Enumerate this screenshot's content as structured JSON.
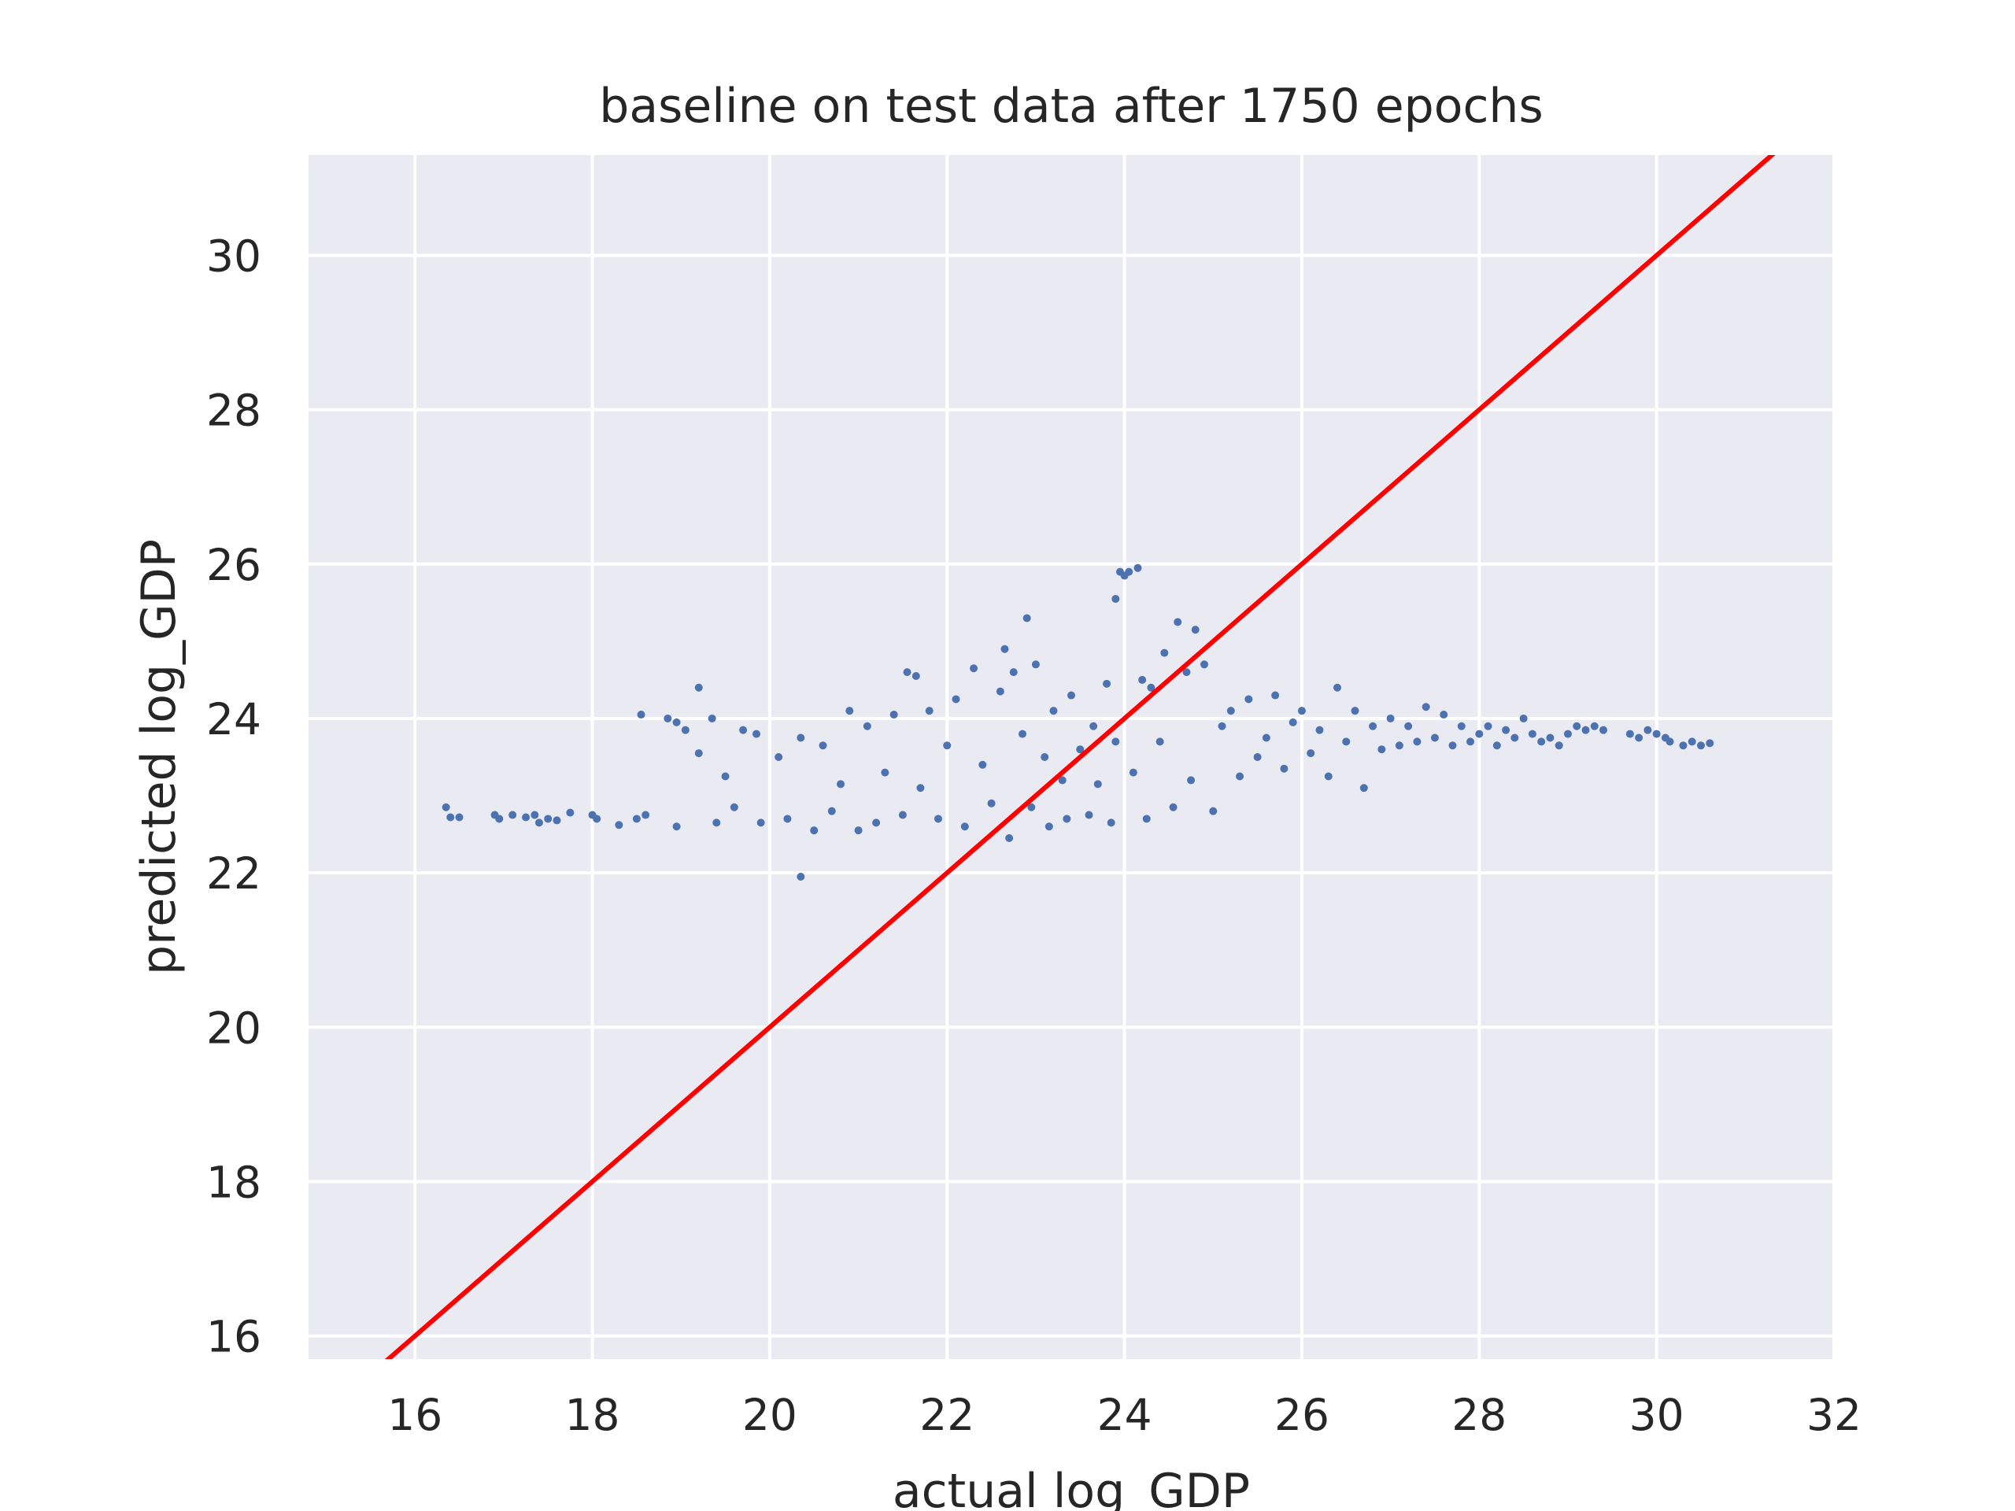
{
  "chart_data": {
    "type": "scatter",
    "title": "baseline on test data after 1750 epochs",
    "xlabel": "actual log_GDP",
    "ylabel": "predicted log_GDP",
    "xlim": [
      14.8,
      32.0
    ],
    "ylim": [
      15.7,
      31.3
    ],
    "xticks": [
      16,
      18,
      20,
      22,
      24,
      26,
      28,
      30,
      32
    ],
    "yticks": [
      16,
      18,
      20,
      22,
      24,
      26,
      28,
      30
    ],
    "xtick_labels": [
      "16",
      "18",
      "20",
      "22",
      "24",
      "26",
      "28",
      "30",
      "32"
    ],
    "ytick_labels": [
      "16",
      "18",
      "20",
      "22",
      "24",
      "26",
      "28",
      "30"
    ],
    "grid": true,
    "background_color": "#eaeaf2",
    "grid_color": "#ffffff",
    "point_color": "#4c72b0",
    "line_color": "#ff0000",
    "reference_line": {
      "description": "y = x",
      "points": [
        [
          15.0,
          15.0
        ],
        [
          32.0,
          32.0
        ]
      ]
    },
    "series": [
      {
        "points": [
          [
            16.35,
            22.85
          ],
          [
            16.4,
            22.72
          ],
          [
            16.5,
            22.72
          ],
          [
            16.9,
            22.75
          ],
          [
            16.95,
            22.7
          ],
          [
            17.1,
            22.75
          ],
          [
            17.25,
            22.72
          ],
          [
            17.35,
            22.75
          ],
          [
            17.4,
            22.65
          ],
          [
            17.5,
            22.7
          ],
          [
            17.6,
            22.68
          ],
          [
            17.75,
            22.78
          ],
          [
            18.0,
            22.75
          ],
          [
            18.05,
            22.7
          ],
          [
            18.3,
            22.62
          ],
          [
            18.5,
            22.7
          ],
          [
            18.6,
            22.75
          ],
          [
            18.55,
            24.05
          ],
          [
            18.85,
            24.0
          ],
          [
            18.95,
            23.95
          ],
          [
            18.95,
            22.6
          ],
          [
            19.05,
            23.85
          ],
          [
            19.2,
            24.4
          ],
          [
            19.2,
            23.55
          ],
          [
            19.35,
            24.0
          ],
          [
            19.4,
            22.65
          ],
          [
            19.5,
            23.25
          ],
          [
            19.6,
            22.85
          ],
          [
            19.7,
            23.85
          ],
          [
            19.85,
            23.8
          ],
          [
            19.9,
            22.65
          ],
          [
            20.1,
            23.5
          ],
          [
            20.2,
            22.7
          ],
          [
            20.35,
            23.75
          ],
          [
            20.35,
            21.95
          ],
          [
            20.5,
            22.55
          ],
          [
            20.6,
            23.65
          ],
          [
            20.7,
            22.8
          ],
          [
            20.8,
            23.15
          ],
          [
            20.9,
            24.1
          ],
          [
            21.0,
            22.55
          ],
          [
            21.1,
            23.9
          ],
          [
            21.2,
            22.65
          ],
          [
            21.3,
            23.3
          ],
          [
            21.4,
            24.05
          ],
          [
            21.5,
            22.75
          ],
          [
            21.55,
            24.6
          ],
          [
            21.65,
            24.55
          ],
          [
            21.7,
            23.1
          ],
          [
            21.8,
            24.1
          ],
          [
            21.9,
            22.7
          ],
          [
            22.0,
            23.65
          ],
          [
            22.1,
            24.25
          ],
          [
            22.2,
            22.6
          ],
          [
            22.3,
            24.65
          ],
          [
            22.4,
            23.4
          ],
          [
            22.5,
            22.9
          ],
          [
            22.6,
            24.35
          ],
          [
            22.65,
            24.9
          ],
          [
            22.7,
            22.45
          ],
          [
            22.75,
            24.6
          ],
          [
            22.85,
            23.8
          ],
          [
            22.9,
            25.3
          ],
          [
            22.95,
            22.85
          ],
          [
            23.0,
            24.7
          ],
          [
            23.1,
            23.5
          ],
          [
            23.15,
            22.6
          ],
          [
            23.2,
            24.1
          ],
          [
            23.3,
            23.2
          ],
          [
            23.35,
            22.7
          ],
          [
            23.4,
            24.3
          ],
          [
            23.5,
            23.6
          ],
          [
            23.6,
            22.75
          ],
          [
            23.65,
            23.9
          ],
          [
            23.7,
            23.15
          ],
          [
            23.8,
            24.45
          ],
          [
            23.85,
            22.65
          ],
          [
            23.9,
            23.7
          ],
          [
            23.9,
            25.55
          ],
          [
            23.95,
            25.9
          ],
          [
            24.0,
            25.85
          ],
          [
            24.05,
            25.9
          ],
          [
            24.1,
            23.3
          ],
          [
            24.15,
            25.95
          ],
          [
            24.2,
            24.5
          ],
          [
            24.25,
            22.7
          ],
          [
            24.3,
            24.4
          ],
          [
            24.4,
            23.7
          ],
          [
            24.45,
            24.85
          ],
          [
            24.55,
            22.85
          ],
          [
            24.6,
            25.25
          ],
          [
            24.7,
            24.6
          ],
          [
            24.75,
            23.2
          ],
          [
            24.8,
            25.15
          ],
          [
            24.9,
            24.7
          ],
          [
            25.0,
            22.8
          ],
          [
            25.1,
            23.9
          ],
          [
            25.2,
            24.1
          ],
          [
            25.3,
            23.25
          ],
          [
            25.4,
            24.25
          ],
          [
            25.5,
            23.5
          ],
          [
            25.6,
            23.75
          ],
          [
            25.7,
            24.3
          ],
          [
            25.8,
            23.35
          ],
          [
            25.9,
            23.95
          ],
          [
            26.0,
            24.1
          ],
          [
            26.1,
            23.55
          ],
          [
            26.2,
            23.85
          ],
          [
            26.3,
            23.25
          ],
          [
            26.4,
            24.4
          ],
          [
            26.5,
            23.7
          ],
          [
            26.6,
            24.1
          ],
          [
            26.7,
            23.1
          ],
          [
            26.8,
            23.9
          ],
          [
            26.9,
            23.6
          ],
          [
            27.0,
            24.0
          ],
          [
            27.1,
            23.65
          ],
          [
            27.2,
            23.9
          ],
          [
            27.3,
            23.7
          ],
          [
            27.4,
            24.15
          ],
          [
            27.5,
            23.75
          ],
          [
            27.6,
            24.05
          ],
          [
            27.7,
            23.65
          ],
          [
            27.8,
            23.9
          ],
          [
            27.9,
            23.7
          ],
          [
            28.0,
            23.8
          ],
          [
            28.1,
            23.9
          ],
          [
            28.2,
            23.65
          ],
          [
            28.3,
            23.85
          ],
          [
            28.4,
            23.75
          ],
          [
            28.5,
            24.0
          ],
          [
            28.6,
            23.8
          ],
          [
            28.7,
            23.7
          ],
          [
            28.8,
            23.75
          ],
          [
            28.9,
            23.65
          ],
          [
            29.0,
            23.8
          ],
          [
            29.1,
            23.9
          ],
          [
            29.2,
            23.85
          ],
          [
            29.3,
            23.9
          ],
          [
            29.4,
            23.85
          ],
          [
            29.7,
            23.8
          ],
          [
            29.8,
            23.75
          ],
          [
            29.9,
            23.85
          ],
          [
            30.0,
            23.8
          ],
          [
            30.1,
            23.75
          ],
          [
            30.15,
            23.7
          ],
          [
            30.3,
            23.65
          ],
          [
            30.4,
            23.7
          ],
          [
            30.5,
            23.65
          ],
          [
            30.6,
            23.68
          ]
        ]
      }
    ]
  }
}
